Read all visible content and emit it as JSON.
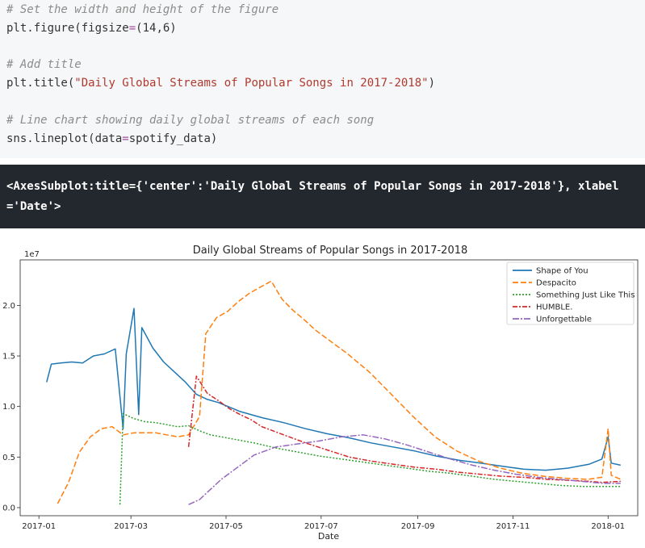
{
  "code": {
    "lines": [
      {
        "comment": "# Set the width and height of the figure"
      },
      {
        "pre": "plt.figure(figsize",
        "op": "=",
        "post": "(14,6)"
      },
      {
        "comment": "# Add title"
      },
      {
        "pre": "plt.title(",
        "str": "\"Daily Global Streams of Popular Songs in 2017-2018\"",
        "post": ")"
      },
      {
        "comment": "# Line chart showing daily global streams of each song"
      },
      {
        "pre": "sns.lineplot(data",
        "op": "=",
        "post": "spotify_data)"
      }
    ]
  },
  "output": {
    "line1": "<AxesSubplot:title={'center':'Daily Global Streams of Popular Songs in 2017-2018'}, xlabel",
    "line2": "='Date'>"
  },
  "chart_data": {
    "type": "line",
    "title": "Daily Global Streams of Popular Songs in 2017-2018",
    "xlabel": "Date",
    "ylabel": "",
    "y_offset_label": "1e7",
    "xlim": [
      "2016-12-20",
      "2018-01-20"
    ],
    "ylim": [
      -0.08,
      2.45
    ],
    "x_ticks": [
      "2017-01",
      "2017-03",
      "2017-05",
      "2017-07",
      "2017-09",
      "2017-11",
      "2018-01"
    ],
    "y_ticks": [
      "0.0",
      "0.5",
      "1.0",
      "1.5",
      "2.0"
    ],
    "legend_position": "top-right",
    "series": [
      {
        "name": "Shape of You",
        "color": "#1f77b4",
        "dash": "",
        "points": [
          [
            "2017-01-06",
            1.24
          ],
          [
            "2017-01-09",
            1.42
          ],
          [
            "2017-01-15",
            1.43
          ],
          [
            "2017-01-22",
            1.44
          ],
          [
            "2017-01-29",
            1.43
          ],
          [
            "2017-02-05",
            1.5
          ],
          [
            "2017-02-12",
            1.52
          ],
          [
            "2017-02-19",
            1.57
          ],
          [
            "2017-02-24",
            0.78
          ],
          [
            "2017-02-26",
            1.52
          ],
          [
            "2017-03-03",
            1.97
          ],
          [
            "2017-03-06",
            0.92
          ],
          [
            "2017-03-08",
            1.78
          ],
          [
            "2017-03-15",
            1.58
          ],
          [
            "2017-03-22",
            1.44
          ],
          [
            "2017-03-29",
            1.34
          ],
          [
            "2017-04-05",
            1.24
          ],
          [
            "2017-04-12",
            1.12
          ],
          [
            "2017-04-19",
            1.07
          ],
          [
            "2017-04-26",
            1.04
          ],
          [
            "2017-05-10",
            0.95
          ],
          [
            "2017-05-24",
            0.89
          ],
          [
            "2017-06-07",
            0.84
          ],
          [
            "2017-06-21",
            0.78
          ],
          [
            "2017-07-05",
            0.73
          ],
          [
            "2017-07-19",
            0.69
          ],
          [
            "2017-08-02",
            0.64
          ],
          [
            "2017-08-16",
            0.6
          ],
          [
            "2017-08-30",
            0.56
          ],
          [
            "2017-09-13",
            0.51
          ],
          [
            "2017-09-27",
            0.47
          ],
          [
            "2017-10-11",
            0.44
          ],
          [
            "2017-10-25",
            0.41
          ],
          [
            "2017-11-08",
            0.38
          ],
          [
            "2017-11-22",
            0.37
          ],
          [
            "2017-12-06",
            0.39
          ],
          [
            "2017-12-20",
            0.43
          ],
          [
            "2017-12-28",
            0.48
          ],
          [
            "2018-01-01",
            0.7
          ],
          [
            "2018-01-03",
            0.44
          ],
          [
            "2018-01-09",
            0.42
          ]
        ]
      },
      {
        "name": "Despacito",
        "color": "#ff7f0e",
        "dash": "7,3",
        "points": [
          [
            "2017-01-13",
            0.04
          ],
          [
            "2017-01-20",
            0.25
          ],
          [
            "2017-01-27",
            0.55
          ],
          [
            "2017-02-03",
            0.7
          ],
          [
            "2017-02-10",
            0.78
          ],
          [
            "2017-02-17",
            0.8
          ],
          [
            "2017-02-24",
            0.72
          ],
          [
            "2017-03-03",
            0.74
          ],
          [
            "2017-03-10",
            0.74
          ],
          [
            "2017-03-17",
            0.74
          ],
          [
            "2017-03-24",
            0.72
          ],
          [
            "2017-03-31",
            0.7
          ],
          [
            "2017-04-07",
            0.72
          ],
          [
            "2017-04-14",
            0.9
          ],
          [
            "2017-04-18",
            1.72
          ],
          [
            "2017-04-25",
            1.88
          ],
          [
            "2017-05-02",
            1.94
          ],
          [
            "2017-05-09",
            2.04
          ],
          [
            "2017-05-16",
            2.12
          ],
          [
            "2017-05-23",
            2.18
          ],
          [
            "2017-05-30",
            2.24
          ],
          [
            "2017-06-06",
            2.06
          ],
          [
            "2017-06-13",
            1.95
          ],
          [
            "2017-06-20",
            1.86
          ],
          [
            "2017-06-27",
            1.76
          ],
          [
            "2017-07-04",
            1.68
          ],
          [
            "2017-07-18",
            1.52
          ],
          [
            "2017-08-01",
            1.34
          ],
          [
            "2017-08-15",
            1.12
          ],
          [
            "2017-08-29",
            0.9
          ],
          [
            "2017-09-12",
            0.7
          ],
          [
            "2017-09-26",
            0.56
          ],
          [
            "2017-10-10",
            0.46
          ],
          [
            "2017-10-24",
            0.39
          ],
          [
            "2017-11-07",
            0.34
          ],
          [
            "2017-11-21",
            0.31
          ],
          [
            "2017-12-05",
            0.29
          ],
          [
            "2017-12-19",
            0.28
          ],
          [
            "2017-12-28",
            0.3
          ],
          [
            "2018-01-01",
            0.78
          ],
          [
            "2018-01-03",
            0.32
          ],
          [
            "2018-01-09",
            0.28
          ]
        ]
      },
      {
        "name": "Something Just Like This",
        "color": "#2ca02c",
        "dash": "2,2",
        "points": [
          [
            "2017-02-22",
            0.03
          ],
          [
            "2017-02-24",
            0.93
          ],
          [
            "2017-03-03",
            0.88
          ],
          [
            "2017-03-10",
            0.85
          ],
          [
            "2017-03-17",
            0.84
          ],
          [
            "2017-03-24",
            0.82
          ],
          [
            "2017-03-31",
            0.8
          ],
          [
            "2017-04-07",
            0.81
          ],
          [
            "2017-04-14",
            0.76
          ],
          [
            "2017-04-21",
            0.72
          ],
          [
            "2017-05-05",
            0.68
          ],
          [
            "2017-05-19",
            0.64
          ],
          [
            "2017-06-02",
            0.59
          ],
          [
            "2017-06-16",
            0.55
          ],
          [
            "2017-06-30",
            0.51
          ],
          [
            "2017-07-14",
            0.48
          ],
          [
            "2017-07-28",
            0.45
          ],
          [
            "2017-08-11",
            0.42
          ],
          [
            "2017-08-25",
            0.39
          ],
          [
            "2017-09-08",
            0.36
          ],
          [
            "2017-09-22",
            0.34
          ],
          [
            "2017-10-06",
            0.31
          ],
          [
            "2017-10-20",
            0.28
          ],
          [
            "2017-11-03",
            0.26
          ],
          [
            "2017-11-17",
            0.24
          ],
          [
            "2017-12-01",
            0.22
          ],
          [
            "2017-12-15",
            0.21
          ],
          [
            "2017-12-29",
            0.21
          ],
          [
            "2018-01-09",
            0.21
          ]
        ]
      },
      {
        "name": "HUMBLE.",
        "color": "#d62728",
        "dash": "6,2,2,2",
        "points": [
          [
            "2017-04-07",
            0.6
          ],
          [
            "2017-04-12",
            1.3
          ],
          [
            "2017-04-19",
            1.13
          ],
          [
            "2017-04-26",
            1.06
          ],
          [
            "2017-05-03",
            0.98
          ],
          [
            "2017-05-10",
            0.92
          ],
          [
            "2017-05-17",
            0.87
          ],
          [
            "2017-05-24",
            0.8
          ],
          [
            "2017-06-07",
            0.72
          ],
          [
            "2017-06-21",
            0.64
          ],
          [
            "2017-07-05",
            0.57
          ],
          [
            "2017-07-19",
            0.5
          ],
          [
            "2017-08-02",
            0.46
          ],
          [
            "2017-08-16",
            0.43
          ],
          [
            "2017-08-30",
            0.4
          ],
          [
            "2017-09-13",
            0.38
          ],
          [
            "2017-09-27",
            0.35
          ],
          [
            "2017-10-11",
            0.33
          ],
          [
            "2017-10-25",
            0.31
          ],
          [
            "2017-11-08",
            0.3
          ],
          [
            "2017-11-22",
            0.28
          ],
          [
            "2017-12-06",
            0.27
          ],
          [
            "2017-12-20",
            0.26
          ],
          [
            "2017-12-28",
            0.25
          ],
          [
            "2018-01-09",
            0.26
          ]
        ]
      },
      {
        "name": "Unforgettable",
        "color": "#9467bd",
        "dash": "8,2,2,2",
        "points": [
          [
            "2017-04-07",
            0.03
          ],
          [
            "2017-04-14",
            0.08
          ],
          [
            "2017-04-21",
            0.18
          ],
          [
            "2017-04-28",
            0.28
          ],
          [
            "2017-05-05",
            0.36
          ],
          [
            "2017-05-12",
            0.44
          ],
          [
            "2017-05-19",
            0.52
          ],
          [
            "2017-05-26",
            0.56
          ],
          [
            "2017-06-02",
            0.6
          ],
          [
            "2017-06-16",
            0.63
          ],
          [
            "2017-06-30",
            0.66
          ],
          [
            "2017-07-14",
            0.7
          ],
          [
            "2017-07-28",
            0.72
          ],
          [
            "2017-08-11",
            0.68
          ],
          [
            "2017-08-25",
            0.62
          ],
          [
            "2017-09-08",
            0.55
          ],
          [
            "2017-09-22",
            0.48
          ],
          [
            "2017-10-06",
            0.42
          ],
          [
            "2017-10-20",
            0.37
          ],
          [
            "2017-11-03",
            0.33
          ],
          [
            "2017-11-17",
            0.3
          ],
          [
            "2017-12-01",
            0.28
          ],
          [
            "2017-12-15",
            0.26
          ],
          [
            "2017-12-29",
            0.24
          ],
          [
            "2018-01-09",
            0.24
          ]
        ]
      }
    ]
  }
}
